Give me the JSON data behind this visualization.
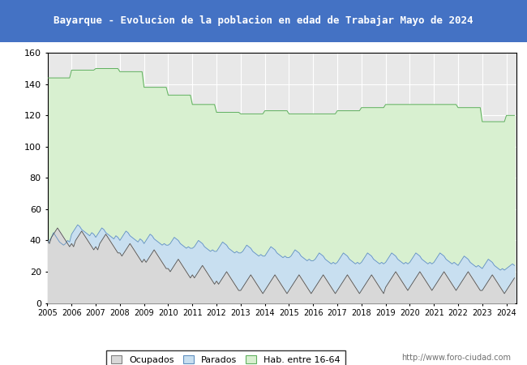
{
  "title": "Bayarque - Evolucion de la poblacion en edad de Trabajar Mayo de 2024",
  "title_bg": "#4472c4",
  "title_color": "white",
  "ylim": [
    0,
    160
  ],
  "yticks": [
    0,
    20,
    40,
    60,
    80,
    100,
    120,
    140,
    160
  ],
  "year_start": 2005,
  "year_end": 2024,
  "background_plot": "#e8e8e8",
  "background_fig": "white",
  "footer_text": "http://www.foro-ciudad.com",
  "legend_labels": [
    "Ocupados",
    "Parados",
    "Hab. entre 16-64"
  ],
  "fill_ocupados": "#d8d8d8",
  "fill_parados": "#c8dff0",
  "fill_hab": "#d8f0d0",
  "line_ocupados": "#505050",
  "line_parados": "#6090c0",
  "line_hab": "#60b060",
  "grid_color": "#ffffff",
  "hab_data": [
    144,
    144,
    144,
    144,
    144,
    144,
    144,
    144,
    144,
    144,
    144,
    144,
    149,
    149,
    149,
    149,
    149,
    149,
    149,
    149,
    149,
    149,
    149,
    149,
    150,
    150,
    150,
    150,
    150,
    150,
    150,
    150,
    150,
    150,
    150,
    150,
    148,
    148,
    148,
    148,
    148,
    148,
    148,
    148,
    148,
    148,
    148,
    148,
    138,
    138,
    138,
    138,
    138,
    138,
    138,
    138,
    138,
    138,
    138,
    138,
    133,
    133,
    133,
    133,
    133,
    133,
    133,
    133,
    133,
    133,
    133,
    133,
    127,
    127,
    127,
    127,
    127,
    127,
    127,
    127,
    127,
    127,
    127,
    127,
    122,
    122,
    122,
    122,
    122,
    122,
    122,
    122,
    122,
    122,
    122,
    122,
    121,
    121,
    121,
    121,
    121,
    121,
    121,
    121,
    121,
    121,
    121,
    121,
    123,
    123,
    123,
    123,
    123,
    123,
    123,
    123,
    123,
    123,
    123,
    123,
    121,
    121,
    121,
    121,
    121,
    121,
    121,
    121,
    121,
    121,
    121,
    121,
    121,
    121,
    121,
    121,
    121,
    121,
    121,
    121,
    121,
    121,
    121,
    121,
    123,
    123,
    123,
    123,
    123,
    123,
    123,
    123,
    123,
    123,
    123,
    123,
    125,
    125,
    125,
    125,
    125,
    125,
    125,
    125,
    125,
    125,
    125,
    125,
    127,
    127,
    127,
    127,
    127,
    127,
    127,
    127,
    127,
    127,
    127,
    127,
    127,
    127,
    127,
    127,
    127,
    127,
    127,
    127,
    127,
    127,
    127,
    127,
    127,
    127,
    127,
    127,
    127,
    127,
    127,
    127,
    127,
    127,
    127,
    127,
    125,
    125,
    125,
    125,
    125,
    125,
    125,
    125,
    125,
    125,
    125,
    125,
    116,
    116,
    116,
    116,
    116,
    116,
    116,
    116,
    116,
    116,
    116,
    116,
    120,
    120,
    120,
    120,
    120
  ],
  "parados_monthly": [
    38,
    40,
    42,
    45,
    43,
    41,
    39,
    38,
    37,
    38,
    40,
    39,
    44,
    46,
    48,
    50,
    49,
    47,
    46,
    45,
    44,
    43,
    45,
    44,
    42,
    44,
    46,
    48,
    47,
    45,
    44,
    43,
    42,
    41,
    43,
    42,
    40,
    42,
    44,
    46,
    45,
    43,
    42,
    41,
    40,
    39,
    41,
    40,
    38,
    40,
    42,
    44,
    43,
    41,
    40,
    39,
    38,
    37,
    38,
    37,
    37,
    38,
    40,
    42,
    41,
    40,
    38,
    37,
    36,
    35,
    36,
    35,
    35,
    36,
    38,
    40,
    39,
    38,
    36,
    35,
    34,
    33,
    34,
    33,
    33,
    35,
    37,
    39,
    38,
    37,
    35,
    34,
    33,
    32,
    33,
    32,
    32,
    33,
    35,
    37,
    36,
    35,
    33,
    32,
    31,
    30,
    31,
    30,
    30,
    32,
    34,
    36,
    35,
    34,
    32,
    31,
    30,
    29,
    30,
    29,
    29,
    30,
    32,
    34,
    33,
    32,
    30,
    29,
    28,
    27,
    28,
    27,
    27,
    28,
    30,
    32,
    31,
    30,
    28,
    27,
    26,
    25,
    26,
    25,
    26,
    28,
    30,
    32,
    31,
    30,
    28,
    27,
    26,
    25,
    26,
    25,
    26,
    28,
    30,
    32,
    31,
    30,
    28,
    27,
    26,
    25,
    26,
    25,
    26,
    28,
    30,
    32,
    31,
    30,
    28,
    27,
    26,
    25,
    26,
    25,
    26,
    28,
    30,
    32,
    31,
    30,
    28,
    27,
    26,
    25,
    26,
    25,
    26,
    28,
    30,
    32,
    31,
    30,
    28,
    27,
    26,
    25,
    26,
    25,
    24,
    26,
    28,
    30,
    29,
    28,
    26,
    25,
    24,
    23,
    24,
    23,
    22,
    24,
    26,
    28,
    27,
    26,
    24,
    23,
    22,
    21,
    22,
    21,
    22,
    23,
    24,
    25,
    24
  ],
  "ocupados_monthly": [
    40,
    38,
    42,
    44,
    46,
    48,
    46,
    44,
    42,
    40,
    38,
    36,
    38,
    36,
    40,
    42,
    44,
    46,
    44,
    42,
    40,
    38,
    36,
    34,
    36,
    34,
    38,
    40,
    42,
    44,
    42,
    40,
    38,
    36,
    34,
    32,
    32,
    30,
    32,
    34,
    36,
    38,
    36,
    34,
    32,
    30,
    28,
    26,
    28,
    26,
    28,
    30,
    32,
    34,
    32,
    30,
    28,
    26,
    24,
    22,
    22,
    20,
    22,
    24,
    26,
    28,
    26,
    24,
    22,
    20,
    18,
    16,
    18,
    16,
    18,
    20,
    22,
    24,
    22,
    20,
    18,
    16,
    14,
    12,
    14,
    12,
    14,
    16,
    18,
    20,
    18,
    16,
    14,
    12,
    10,
    8,
    8,
    10,
    12,
    14,
    16,
    18,
    16,
    14,
    12,
    10,
    8,
    6,
    8,
    10,
    12,
    14,
    16,
    18,
    16,
    14,
    12,
    10,
    8,
    6,
    8,
    10,
    12,
    14,
    16,
    18,
    16,
    14,
    12,
    10,
    8,
    6,
    8,
    10,
    12,
    14,
    16,
    18,
    16,
    14,
    12,
    10,
    8,
    6,
    8,
    10,
    12,
    14,
    16,
    18,
    16,
    14,
    12,
    10,
    8,
    6,
    8,
    10,
    12,
    14,
    16,
    18,
    16,
    14,
    12,
    10,
    8,
    6,
    10,
    12,
    14,
    16,
    18,
    20,
    18,
    16,
    14,
    12,
    10,
    8,
    10,
    12,
    14,
    16,
    18,
    20,
    18,
    16,
    14,
    12,
    10,
    8,
    10,
    12,
    14,
    16,
    18,
    20,
    18,
    16,
    14,
    12,
    10,
    8,
    10,
    12,
    14,
    16,
    18,
    20,
    18,
    16,
    14,
    12,
    10,
    8,
    8,
    10,
    12,
    14,
    16,
    18,
    16,
    14,
    12,
    10,
    8,
    6,
    8,
    10,
    12,
    14,
    16
  ]
}
